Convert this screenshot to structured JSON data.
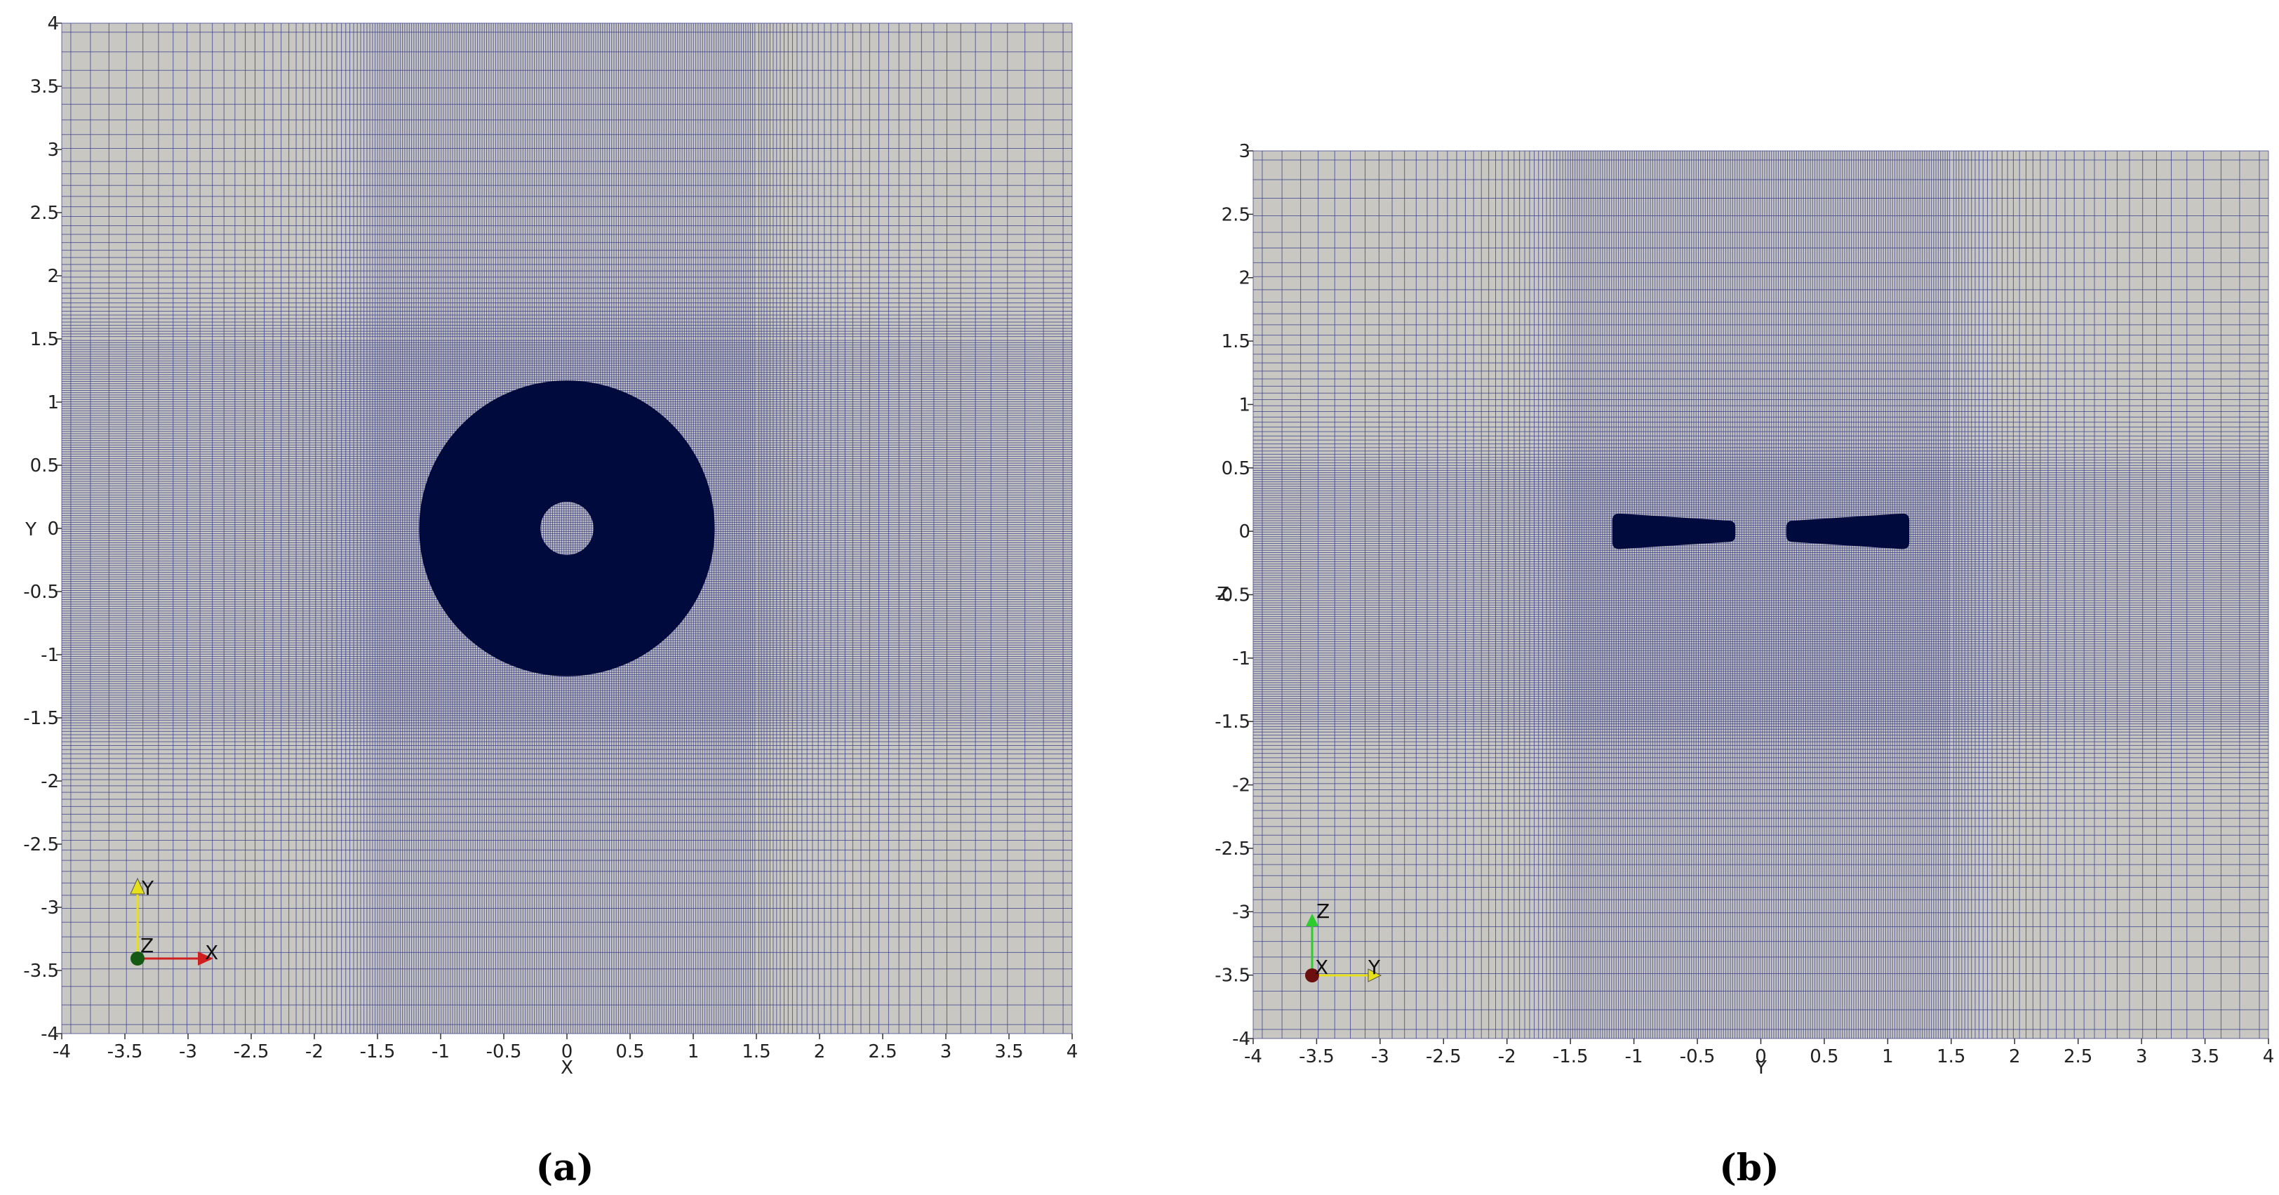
{
  "panels": [
    {
      "id": "a",
      "caption": "(a)",
      "xlabel": "X",
      "ylabel": "Y",
      "xlim": [
        -4,
        4
      ],
      "ylim": [
        -4,
        4
      ],
      "xticks": [
        "-4",
        "-3.5",
        "-3",
        "-2.5",
        "-2",
        "-1.5",
        "-1",
        "-0.5",
        "0",
        "0.5",
        "1",
        "1.5",
        "2",
        "2.5",
        "3",
        "3.5",
        "4"
      ],
      "yticks": [
        "4",
        "3.5",
        "3",
        "2.5",
        "2",
        "1.5",
        "1",
        "0.5",
        "0",
        "-0.5",
        "-1",
        "-1.5",
        "-2",
        "-2.5",
        "-3",
        "-3.5",
        "-4"
      ],
      "refined_band": [
        -1.5,
        1.5
      ],
      "orientation_axes": [
        "Y",
        "Z",
        "X"
      ],
      "solid": {
        "shape": "annulus",
        "outer_radius": 1.17,
        "inner_radius": 0.21
      }
    },
    {
      "id": "b",
      "caption": "(b)",
      "xlabel": "Y",
      "ylabel": "Z",
      "xlim": [
        -4,
        4
      ],
      "ylim": [
        -4,
        3
      ],
      "xticks": [
        "-4",
        "-3.5",
        "-3",
        "-2.5",
        "-2",
        "-1.5",
        "-1",
        "-0.5",
        "0",
        "0.5",
        "1",
        "1.5",
        "2",
        "2.5",
        "3",
        "3.5",
        "4"
      ],
      "yticks": [
        "3",
        "2.5",
        "2",
        "1.5",
        "1",
        "0.5",
        "0",
        "-0.5",
        "-1",
        "-1.5",
        "-2",
        "-2.5",
        "-3",
        "-3.5",
        "-4"
      ],
      "refined_band": [
        -1.5,
        1.5
      ],
      "orientation_axes": [
        "Z",
        "X",
        "Y"
      ],
      "solid": {
        "shape": "two-blades",
        "span": [
          [
            -1.17,
            -0.2
          ],
          [
            0.2,
            1.17
          ]
        ],
        "thickness": 0.28
      }
    }
  ],
  "colors": {
    "background": "#c8c7c1",
    "mesh_line": "#3a3f8c",
    "solid": "#000a3d",
    "axis_x": "#d01f1f",
    "axis_y": "#e6e01a",
    "axis_z_a": "#145a14",
    "axis_z_b": "#2ecc2e",
    "axis_x_b": "#6b0f0f"
  }
}
